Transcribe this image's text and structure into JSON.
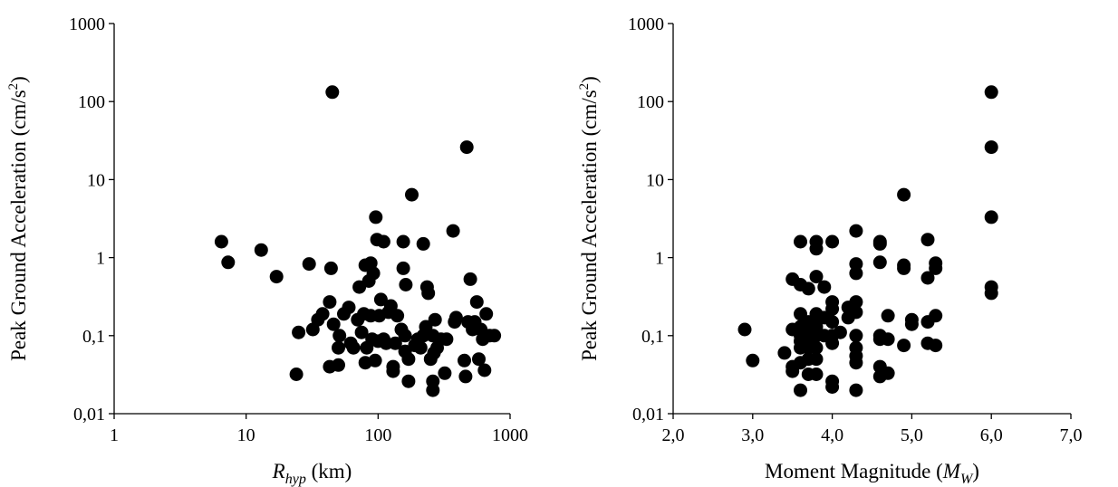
{
  "chart_data": [
    {
      "type": "scatter",
      "xscale": "log",
      "yscale": "log",
      "xlim": [
        1,
        1000
      ],
      "ylim": [
        0.01,
        1000
      ],
      "xlabel": {
        "main": "R",
        "sub": "hyp",
        "unit": " (km)"
      },
      "ylabel": {
        "main": "Peak Ground Acceleration (cm/s",
        "sup": "2",
        "tail": ")"
      },
      "xticks": [
        1,
        10,
        100,
        1000
      ],
      "xtick_labels": [
        "1",
        "10",
        "100",
        "1000"
      ],
      "yticks": [
        0.01,
        0.1,
        1,
        10,
        100,
        1000
      ],
      "ytick_labels": [
        "0,01",
        "0,1",
        "1",
        "10",
        "100",
        "1000"
      ],
      "grid": false,
      "series": [
        {
          "marker_color": "#000000",
          "points": [
            [
              6.5,
              1.6
            ],
            [
              7.3,
              0.87
            ],
            [
              13,
              1.25
            ],
            [
              17,
              0.57
            ],
            [
              24,
              0.032
            ],
            [
              25,
              0.11
            ],
            [
              30,
              0.83
            ],
            [
              32,
              0.12
            ],
            [
              35,
              0.16
            ],
            [
              38,
              0.19
            ],
            [
              43,
              0.04
            ],
            [
              43,
              0.27
            ],
            [
              44,
              0.73
            ],
            [
              45,
              132
            ],
            [
              46,
              0.14
            ],
            [
              50,
              0.042
            ],
            [
              50,
              0.07
            ],
            [
              51,
              0.1
            ],
            [
              55,
              0.19
            ],
            [
              60,
              0.23
            ],
            [
              62,
              0.08
            ],
            [
              65,
              0.07
            ],
            [
              70,
              0.16
            ],
            [
              72,
              0.42
            ],
            [
              75,
              0.11
            ],
            [
              78,
              0.19
            ],
            [
              80,
              0.045
            ],
            [
              80,
              0.8
            ],
            [
              82,
              0.07
            ],
            [
              85,
              0.5
            ],
            [
              88,
              0.18
            ],
            [
              88,
              0.85
            ],
            [
              90,
              0.09
            ],
            [
              92,
              0.63
            ],
            [
              95,
              0.048
            ],
            [
              96,
              3.3
            ],
            [
              98,
              1.7
            ],
            [
              100,
              0.085
            ],
            [
              102,
              0.18
            ],
            [
              105,
              0.29
            ],
            [
              110,
              1.6
            ],
            [
              110,
              0.09
            ],
            [
              115,
              0.08
            ],
            [
              120,
              0.2
            ],
            [
              125,
              0.24
            ],
            [
              130,
              0.04
            ],
            [
              130,
              0.035
            ],
            [
              135,
              0.08
            ],
            [
              140,
              0.18
            ],
            [
              150,
              0.12
            ],
            [
              155,
              1.6
            ],
            [
              155,
              0.73
            ],
            [
              160,
              0.1
            ],
            [
              160,
              0.063
            ],
            [
              162,
              0.45
            ],
            [
              170,
              0.05
            ],
            [
              170,
              0.026
            ],
            [
              180,
              6.4
            ],
            [
              190,
              0.075
            ],
            [
              200,
              0.09
            ],
            [
              210,
              0.07
            ],
            [
              220,
              1.5
            ],
            [
              220,
              0.1
            ],
            [
              230,
              0.13
            ],
            [
              235,
              0.42
            ],
            [
              240,
              0.35
            ],
            [
              250,
              0.05
            ],
            [
              260,
              0.1
            ],
            [
              260,
              0.02
            ],
            [
              260,
              0.026
            ],
            [
              265,
              0.06
            ],
            [
              270,
              0.16
            ],
            [
              280,
              0.07
            ],
            [
              300,
              0.09
            ],
            [
              320,
              0.033
            ],
            [
              330,
              0.09
            ],
            [
              370,
              2.2
            ],
            [
              380,
              0.15
            ],
            [
              390,
              0.17
            ],
            [
              450,
              0.048
            ],
            [
              460,
              0.03
            ],
            [
              470,
              26
            ],
            [
              480,
              0.15
            ],
            [
              500,
              0.53
            ],
            [
              520,
              0.12
            ],
            [
              540,
              0.15
            ],
            [
              560,
              0.27
            ],
            [
              580,
              0.05
            ],
            [
              600,
              0.12
            ],
            [
              620,
              0.09
            ],
            [
              640,
              0.036
            ],
            [
              660,
              0.19
            ],
            [
              700,
              0.1
            ],
            [
              760,
              0.1
            ]
          ]
        }
      ]
    },
    {
      "type": "scatter",
      "xscale": "linear",
      "yscale": "log",
      "xlim": [
        2.0,
        7.0
      ],
      "ylim": [
        0.01,
        1000
      ],
      "xlabel": {
        "main": "Moment Magnitude (",
        "var": "M",
        "sub": "W",
        "tail": ")"
      },
      "ylabel": {
        "main": "Peak Ground Acceleration (cm/s",
        "sup": "2",
        "tail": ")"
      },
      "xticks": [
        2,
        3,
        4,
        5,
        6,
        7
      ],
      "xtick_labels": [
        "2,0",
        "3,0",
        "4,0",
        "5,0",
        "6,0",
        "7,0"
      ],
      "yticks": [
        0.01,
        0.1,
        1,
        10,
        100,
        1000
      ],
      "ytick_labels": [
        "0,01",
        "0,1",
        "1",
        "10",
        "100",
        "1000"
      ],
      "grid": false,
      "series": [
        {
          "marker_color": "#000000",
          "points": [
            [
              2.9,
              0.12
            ],
            [
              3.0,
              0.048
            ],
            [
              3.4,
              0.06
            ],
            [
              3.5,
              0.53
            ],
            [
              3.5,
              0.12
            ],
            [
              3.5,
              0.04
            ],
            [
              3.5,
              0.035
            ],
            [
              3.6,
              1.6
            ],
            [
              3.6,
              0.45
            ],
            [
              3.6,
              0.19
            ],
            [
              3.6,
              0.13
            ],
            [
              3.6,
              0.1
            ],
            [
              3.6,
              0.085
            ],
            [
              3.6,
              0.07
            ],
            [
              3.6,
              0.045
            ],
            [
              3.6,
              0.02
            ],
            [
              3.7,
              0.4
            ],
            [
              3.7,
              0.15
            ],
            [
              3.7,
              0.12
            ],
            [
              3.7,
              0.09
            ],
            [
              3.7,
              0.07
            ],
            [
              3.7,
              0.05
            ],
            [
              3.7,
              0.032
            ],
            [
              3.8,
              1.6
            ],
            [
              3.8,
              1.3
            ],
            [
              3.8,
              0.57
            ],
            [
              3.8,
              0.19
            ],
            [
              3.8,
              0.13
            ],
            [
              3.8,
              0.1
            ],
            [
              3.8,
              0.07
            ],
            [
              3.8,
              0.05
            ],
            [
              3.8,
              0.032
            ],
            [
              3.9,
              0.42
            ],
            [
              3.9,
              0.17
            ],
            [
              3.9,
              0.1
            ],
            [
              4.0,
              1.6
            ],
            [
              4.0,
              0.27
            ],
            [
              4.0,
              0.22
            ],
            [
              4.0,
              0.15
            ],
            [
              4.0,
              0.1
            ],
            [
              4.0,
              0.08
            ],
            [
              4.0,
              0.026
            ],
            [
              4.0,
              0.022
            ],
            [
              4.1,
              0.11
            ],
            [
              4.2,
              0.23
            ],
            [
              4.2,
              0.17
            ],
            [
              4.3,
              2.2
            ],
            [
              4.3,
              0.83
            ],
            [
              4.3,
              0.63
            ],
            [
              4.3,
              0.27
            ],
            [
              4.3,
              0.2
            ],
            [
              4.3,
              0.1
            ],
            [
              4.3,
              0.07
            ],
            [
              4.3,
              0.055
            ],
            [
              4.3,
              0.045
            ],
            [
              4.3,
              0.02
            ],
            [
              4.6,
              1.6
            ],
            [
              4.6,
              1.5
            ],
            [
              4.6,
              0.87
            ],
            [
              4.6,
              0.1
            ],
            [
              4.6,
              0.09
            ],
            [
              4.6,
              0.04
            ],
            [
              4.6,
              0.03
            ],
            [
              4.7,
              0.18
            ],
            [
              4.7,
              0.09
            ],
            [
              4.7,
              0.033
            ],
            [
              4.9,
              6.4
            ],
            [
              4.9,
              0.8
            ],
            [
              4.9,
              0.73
            ],
            [
              4.9,
              0.075
            ],
            [
              5.0,
              0.16
            ],
            [
              5.0,
              0.14
            ],
            [
              5.2,
              1.7
            ],
            [
              5.2,
              0.55
            ],
            [
              5.2,
              0.15
            ],
            [
              5.2,
              0.08
            ],
            [
              5.3,
              0.85
            ],
            [
              5.3,
              0.73
            ],
            [
              5.3,
              0.18
            ],
            [
              5.3,
              0.075
            ],
            [
              6.0,
              132
            ],
            [
              6.0,
              26
            ],
            [
              6.0,
              3.3
            ],
            [
              6.0,
              0.42
            ],
            [
              6.0,
              0.35
            ]
          ]
        }
      ]
    }
  ]
}
